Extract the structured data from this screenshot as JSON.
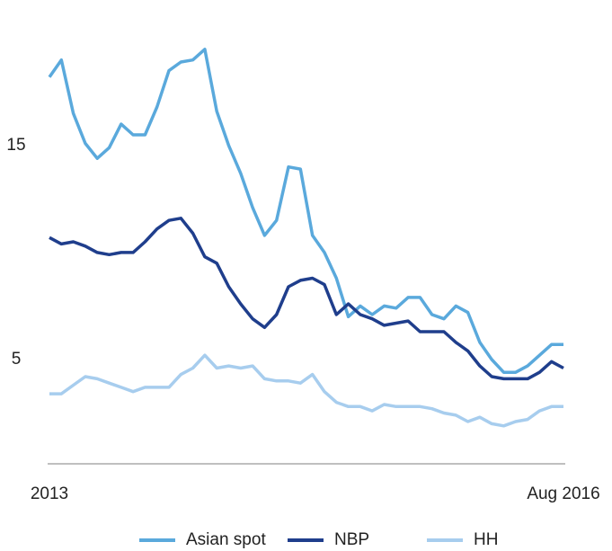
{
  "chart_data": {
    "type": "line",
    "categories": [
      "2013",
      null,
      null,
      null,
      null,
      null,
      null,
      null,
      null,
      null,
      null,
      null,
      null,
      null,
      null,
      null,
      null,
      null,
      null,
      null,
      null,
      null,
      null,
      null,
      null,
      null,
      null,
      null,
      null,
      null,
      null,
      null,
      null,
      null,
      null,
      null,
      null,
      null,
      null,
      null,
      null,
      null,
      null,
      "Aug 2016"
    ],
    "series": [
      {
        "name": "Asian spot",
        "color": "#5aa9dc",
        "values": [
          18.2,
          19.0,
          16.5,
          15.1,
          14.4,
          14.9,
          16.0,
          15.5,
          15.5,
          16.8,
          18.5,
          18.9,
          19.0,
          19.5,
          16.6,
          15.0,
          13.7,
          12.1,
          10.8,
          11.5,
          14.0,
          13.9,
          10.8,
          10.0,
          8.8,
          7.0,
          7.5,
          7.1,
          7.5,
          7.4,
          7.9,
          7.9,
          7.1,
          6.9,
          7.5,
          7.2,
          5.8,
          5.0,
          4.4,
          4.4,
          4.7,
          5.2,
          5.7,
          5.7
        ]
      },
      {
        "name": "NBP",
        "color": "#1f3e8c",
        "values": [
          10.7,
          10.4,
          10.5,
          10.3,
          10.0,
          9.9,
          10.0,
          10.0,
          10.5,
          11.1,
          11.5,
          11.6,
          10.9,
          9.8,
          9.5,
          8.4,
          7.6,
          6.9,
          6.5,
          7.1,
          8.4,
          8.7,
          8.8,
          8.5,
          7.1,
          7.6,
          7.1,
          6.9,
          6.6,
          6.7,
          6.8,
          6.3,
          6.3,
          6.3,
          5.8,
          5.4,
          4.7,
          4.2,
          4.1,
          4.1,
          4.1,
          4.4,
          4.9,
          4.6
        ]
      },
      {
        "name": "HH",
        "color": "#a7cdee",
        "values": [
          3.4,
          3.4,
          3.8,
          4.2,
          4.1,
          3.9,
          3.7,
          3.5,
          3.7,
          3.7,
          3.7,
          4.3,
          4.6,
          5.2,
          4.6,
          4.7,
          4.6,
          4.7,
          4.1,
          4.0,
          4.0,
          3.9,
          4.3,
          3.5,
          3.0,
          2.8,
          2.8,
          2.6,
          2.9,
          2.8,
          2.8,
          2.8,
          2.7,
          2.5,
          2.4,
          2.1,
          2.3,
          2.0,
          1.9,
          2.1,
          2.2,
          2.6,
          2.8,
          2.8
        ]
      }
    ],
    "ylim": [
      0,
      21.8
    ],
    "yticks": [
      5,
      15
    ]
  }
}
